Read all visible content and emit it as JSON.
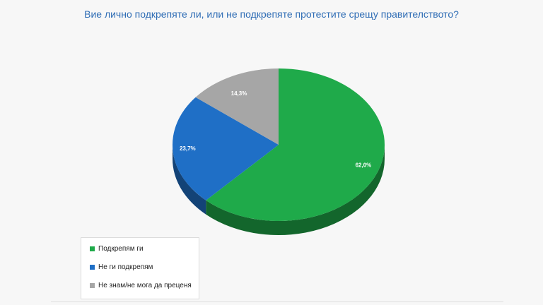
{
  "title": "Вие лично подкрепяте ли, или не подкрепяте протестите срещу правителството?",
  "chart_data": {
    "type": "pie",
    "three_d": true,
    "slices": [
      {
        "label": "Подкрепям ги",
        "value": 62.0,
        "display": "62,0%",
        "color": "#1faa4a"
      },
      {
        "label": "Не ги подкрепям",
        "value": 23.7,
        "display": "23,7%",
        "color": "#1f6fc6"
      },
      {
        "label": "Не знам/не мога да преценя",
        "value": 14.3,
        "display": "14,3%",
        "color": "#a6a6a6"
      }
    ],
    "legend_position": "bottom-left"
  }
}
